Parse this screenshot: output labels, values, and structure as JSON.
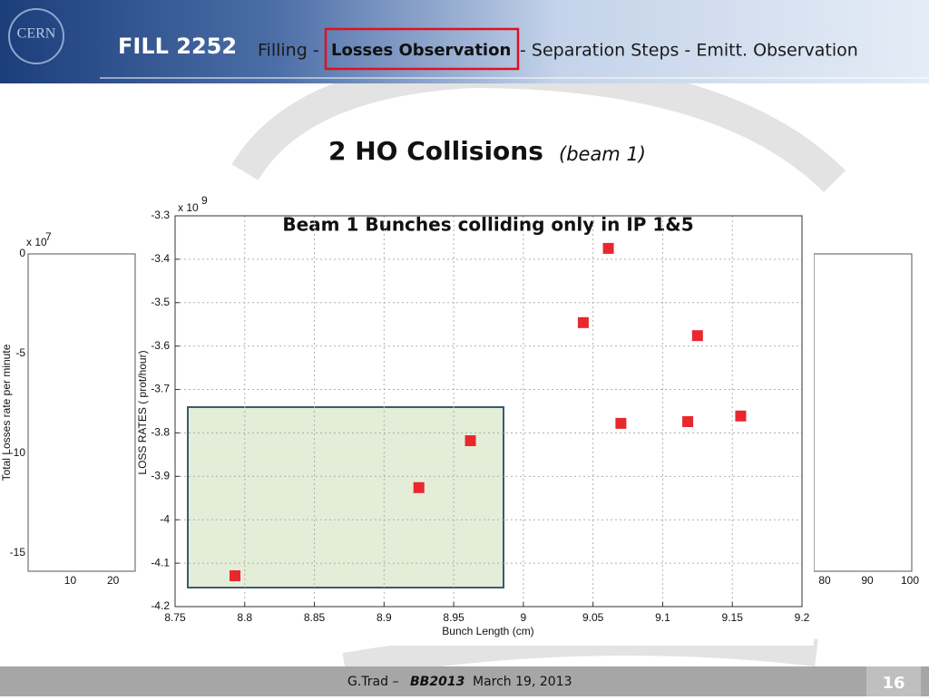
{
  "header": {
    "fill": "FILL 2252",
    "steps": [
      "Filling -",
      "Losses Observation",
      "- Separation Steps - Emitt. Observation"
    ],
    "logo": "CERN"
  },
  "slide_title": {
    "main": "2 HO Collisions",
    "sub": "(beam 1)"
  },
  "left_plot": {
    "exponent_base": "x 10",
    "exponent": "7",
    "ylabel": "Total Losses rate per minute",
    "yticks": [
      0,
      -5,
      -10,
      -15
    ],
    "xticks": [
      10,
      20
    ]
  },
  "right_plot": {
    "xticks": [
      80,
      90,
      100
    ]
  },
  "chart_data": {
    "type": "scatter",
    "title": "Beam 1 Bunches colliding only in IP 1&5",
    "xlabel": "Bunch Length (cm)",
    "ylabel": "LOSS RATES ( prot/hour)",
    "y_multiplier": "x 10",
    "y_multiplier_exponent": "9",
    "x": [
      8.793,
      8.925,
      8.962,
      9.043,
      9.061,
      9.07,
      9.118,
      9.125,
      9.156
    ],
    "values": [
      -4.129,
      -3.926,
      -3.818,
      -3.546,
      -3.375,
      -3.778,
      -3.774,
      -3.576,
      -3.761
    ],
    "color": "#e8282e",
    "xlim": [
      8.75,
      9.2
    ],
    "xticks": [
      8.75,
      8.8,
      8.85,
      8.9,
      8.95,
      9,
      9.05,
      9.1,
      9.15,
      9.2
    ],
    "ylim": [
      -4.2,
      -3.3
    ],
    "yticks": [
      -3.3,
      -3.4,
      -3.5,
      -3.6,
      -3.7,
      -3.8,
      -3.9,
      -4,
      -4.1,
      -4.2
    ],
    "grid": true
  },
  "footer": {
    "author": "G.Trad –",
    "event": "BB2013",
    "date": "March 19, 2013",
    "page": "16"
  }
}
